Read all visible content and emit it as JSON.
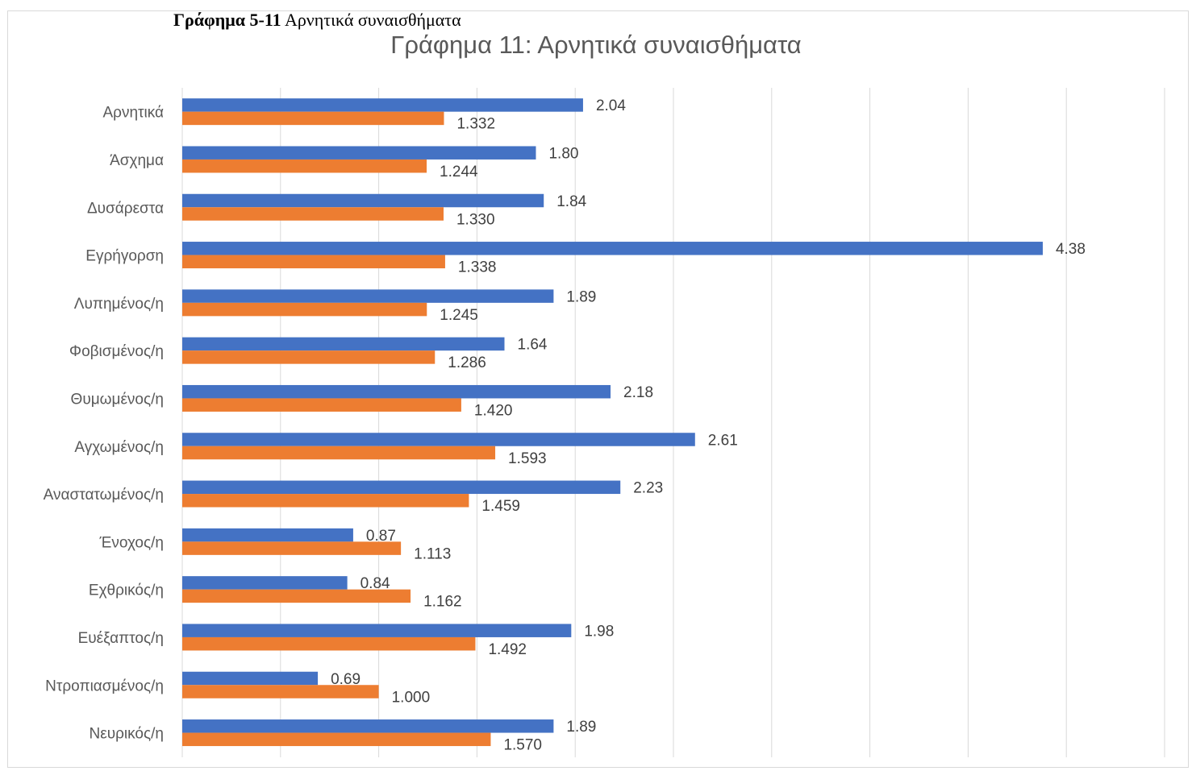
{
  "caption": {
    "label": "Γράφημα 5-11",
    "text": "Αρνητικά συναισθήματα"
  },
  "chart_data": {
    "type": "bar",
    "orientation": "horizontal",
    "title": "Γράφημα 11: Αρνητικά συναισθήματα",
    "xlim": [
      0,
      5
    ],
    "grid": true,
    "legend": "none",
    "categories": [
      "Αρνητικά",
      "Άσχημα",
      "Δυσάρεστα",
      "Εγρήγορση",
      "Λυπημένος/η",
      "Φοβισμένος/η",
      "Θυμωμένος/η",
      "Αγχωμένος/η",
      "Αναστατωμένος/η",
      "Ένοχος/η",
      "Εχθρικός/η",
      "Ευέξαπτος/η",
      "Ντροπιασμένος/η",
      "Νευρικός/η"
    ],
    "series": [
      {
        "color": "#4472c4",
        "values": [
          2.04,
          1.8,
          1.84,
          4.38,
          1.89,
          1.64,
          2.18,
          2.61,
          2.23,
          0.87,
          0.84,
          1.98,
          0.69,
          1.89
        ],
        "labels": [
          "2.04",
          "1.80",
          "1.84",
          "4.38",
          "1.89",
          "1.64",
          "2.18",
          "2.61",
          "2.23",
          "0.87",
          "0.84",
          "1.98",
          "0.69",
          "1.89"
        ]
      },
      {
        "color": "#ed7d31",
        "values": [
          1.332,
          1.244,
          1.33,
          1.338,
          1.245,
          1.286,
          1.42,
          1.593,
          1.459,
          1.113,
          1.162,
          1.492,
          1.0,
          1.57
        ],
        "labels": [
          "1.332",
          "1.244",
          "1.330",
          "1.338",
          "1.245",
          "1.286",
          "1.420",
          "1.593",
          "1.459",
          "1.113",
          "1.162",
          "1.492",
          "1.000",
          "1.570"
        ]
      }
    ]
  }
}
